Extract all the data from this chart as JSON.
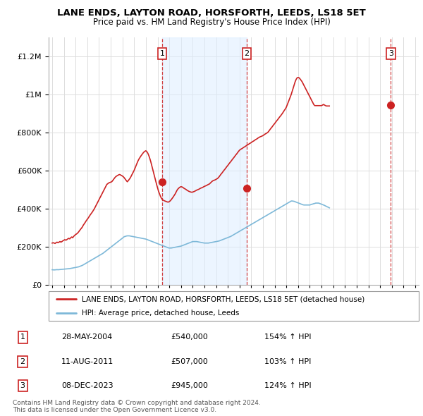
{
  "title1": "LANE ENDS, LAYTON ROAD, HORSFORTH, LEEDS, LS18 5ET",
  "title2": "Price paid vs. HM Land Registry's House Price Index (HPI)",
  "legend_line1": "LANE ENDS, LAYTON ROAD, HORSFORTH, LEEDS, LS18 5ET (detached house)",
  "legend_line2": "HPI: Average price, detached house, Leeds",
  "footer1": "Contains HM Land Registry data © Crown copyright and database right 2024.",
  "footer2": "This data is licensed under the Open Government Licence v3.0.",
  "transactions": [
    {
      "num": 1,
      "date": "28-MAY-2004",
      "price": 540000,
      "hpi_pct": "154% ↑ HPI",
      "year": 2004.4
    },
    {
      "num": 2,
      "date": "11-AUG-2011",
      "price": 507000,
      "hpi_pct": "103% ↑ HPI",
      "year": 2011.62
    },
    {
      "num": 3,
      "date": "08-DEC-2023",
      "price": 945000,
      "hpi_pct": "124% ↑ HPI",
      "year": 2023.92
    }
  ],
  "hpi_color": "#7db8d8",
  "price_color": "#cc2222",
  "vline_color": "#cc2222",
  "shade_color": "#ddeeff",
  "ylim": [
    0,
    1300000
  ],
  "yticks": [
    0,
    200000,
    400000,
    600000,
    800000,
    1000000,
    1200000
  ],
  "xlim_start": 1994.7,
  "xlim_end": 2026.3,
  "hpi_data_monthly": {
    "start_year": 1995,
    "start_month": 1,
    "values": [
      80000,
      79500,
      79000,
      79500,
      80000,
      80500,
      80000,
      80500,
      81000,
      81500,
      82000,
      82500,
      83000,
      83500,
      84000,
      84500,
      85000,
      85500,
      86000,
      87000,
      88000,
      89000,
      90000,
      91000,
      92000,
      93000,
      94000,
      95000,
      97000,
      99000,
      101000,
      103000,
      106000,
      109000,
      112000,
      115000,
      118000,
      121000,
      124000,
      127000,
      130000,
      133000,
      136000,
      139000,
      142000,
      145000,
      148000,
      151000,
      154000,
      157000,
      160000,
      163000,
      166000,
      170000,
      174000,
      178000,
      182000,
      186000,
      190000,
      194000,
      198000,
      202000,
      206000,
      210000,
      214000,
      218000,
      222000,
      226000,
      230000,
      234000,
      238000,
      242000,
      246000,
      250000,
      254000,
      255000,
      257000,
      258000,
      258000,
      258000,
      257000,
      256000,
      255000,
      254000,
      253000,
      252000,
      251000,
      250000,
      249000,
      248000,
      247000,
      246000,
      245000,
      244000,
      243000,
      242000,
      241000,
      239000,
      237000,
      235000,
      233000,
      231000,
      229000,
      227000,
      225000,
      223000,
      221000,
      219000,
      217000,
      215000,
      213000,
      211000,
      209000,
      207000,
      205000,
      203000,
      201000,
      199000,
      197000,
      195000,
      194000,
      194000,
      194000,
      195000,
      196000,
      197000,
      198000,
      199000,
      200000,
      201000,
      202000,
      203000,
      204000,
      206000,
      208000,
      210000,
      212000,
      214000,
      216000,
      218000,
      220000,
      222000,
      224000,
      226000,
      228000,
      228000,
      228000,
      228000,
      228000,
      227000,
      226000,
      225000,
      224000,
      223000,
      222000,
      221000,
      220000,
      220000,
      220000,
      220000,
      220000,
      221000,
      222000,
      223000,
      224000,
      225000,
      226000,
      227000,
      228000,
      229000,
      230000,
      231000,
      233000,
      235000,
      237000,
      239000,
      241000,
      243000,
      245000,
      247000,
      249000,
      251000,
      253000,
      255000,
      258000,
      261000,
      264000,
      267000,
      270000,
      273000,
      276000,
      279000,
      282000,
      285000,
      288000,
      291000,
      294000,
      297000,
      300000,
      303000,
      306000,
      309000,
      312000,
      315000,
      318000,
      321000,
      324000,
      327000,
      330000,
      333000,
      336000,
      339000,
      342000,
      345000,
      348000,
      351000,
      354000,
      357000,
      360000,
      363000,
      366000,
      369000,
      372000,
      375000,
      378000,
      381000,
      384000,
      387000,
      390000,
      393000,
      396000,
      399000,
      402000,
      405000,
      408000,
      411000,
      414000,
      417000,
      420000,
      423000,
      426000,
      429000,
      432000,
      435000,
      438000,
      441000,
      441000,
      440000,
      439000,
      437000,
      435000,
      433000,
      431000,
      429000,
      427000,
      425000,
      423000,
      421000,
      420000,
      420000,
      420000,
      420000,
      420000,
      420000,
      420000,
      422000,
      424000,
      425000,
      427000,
      428000,
      430000,
      430000,
      430000,
      430000,
      428000,
      426000,
      424000,
      422000,
      420000,
      418000,
      415000,
      413000,
      410000,
      408000,
      405000
    ]
  },
  "price_data_monthly": {
    "start_year": 1995,
    "start_month": 1,
    "values": [
      220000,
      222000,
      220000,
      218000,
      222000,
      225000,
      222000,
      225000,
      228000,
      225000,
      228000,
      232000,
      235000,
      238000,
      235000,
      238000,
      242000,
      245000,
      242000,
      248000,
      252000,
      248000,
      255000,
      260000,
      265000,
      268000,
      272000,
      278000,
      285000,
      292000,
      298000,
      305000,
      315000,
      322000,
      330000,
      338000,
      345000,
      352000,
      360000,
      368000,
      375000,
      382000,
      390000,
      398000,
      408000,
      418000,
      428000,
      438000,
      448000,
      458000,
      468000,
      478000,
      488000,
      498000,
      508000,
      518000,
      528000,
      532000,
      536000,
      538000,
      540000,
      542000,
      548000,
      555000,
      562000,
      568000,
      572000,
      575000,
      578000,
      580000,
      578000,
      575000,
      572000,
      568000,
      562000,
      555000,
      548000,
      542000,
      548000,
      555000,
      562000,
      572000,
      582000,
      592000,
      602000,
      615000,
      628000,
      640000,
      652000,
      662000,
      670000,
      678000,
      685000,
      692000,
      698000,
      702000,
      705000,
      700000,
      692000,
      680000,
      665000,
      648000,
      628000,
      608000,
      588000,
      568000,
      548000,
      528000,
      510000,
      492000,
      478000,
      465000,
      455000,
      448000,
      445000,
      442000,
      440000,
      438000,
      436000,
      435000,
      438000,
      442000,
      448000,
      455000,
      462000,
      470000,
      478000,
      488000,
      498000,
      505000,
      510000,
      514000,
      516000,
      515000,
      512000,
      508000,
      505000,
      502000,
      498000,
      495000,
      492000,
      490000,
      488000,
      487000,
      488000,
      490000,
      492000,
      495000,
      498000,
      500000,
      502000,
      505000,
      508000,
      510000,
      512000,
      515000,
      518000,
      520000,
      522000,
      525000,
      528000,
      530000,
      535000,
      540000,
      545000,
      548000,
      550000,
      552000,
      555000,
      558000,
      562000,
      568000,
      575000,
      582000,
      588000,
      595000,
      602000,
      608000,
      615000,
      622000,
      628000,
      635000,
      642000,
      648000,
      655000,
      662000,
      668000,
      675000,
      682000,
      688000,
      695000,
      702000,
      708000,
      712000,
      715000,
      718000,
      722000,
      725000,
      728000,
      732000,
      735000,
      738000,
      742000,
      745000,
      748000,
      752000,
      755000,
      758000,
      762000,
      765000,
      768000,
      772000,
      775000,
      778000,
      780000,
      782000,
      785000,
      788000,
      792000,
      795000,
      798000,
      802000,
      808000,
      815000,
      822000,
      828000,
      835000,
      842000,
      848000,
      855000,
      862000,
      868000,
      875000,
      882000,
      888000,
      895000,
      902000,
      910000,
      918000,
      925000,
      935000,
      948000,
      962000,
      975000,
      988000,
      1002000,
      1018000,
      1035000,
      1052000,
      1068000,
      1080000,
      1088000,
      1090000,
      1088000,
      1082000,
      1075000,
      1068000,
      1058000,
      1048000,
      1038000,
      1028000,
      1018000,
      1008000,
      998000,
      988000,
      978000,
      968000,
      958000,
      948000,
      942000,
      942000,
      942000,
      942000,
      942000,
      942000,
      942000,
      942000,
      945000,
      948000,
      945000,
      942000,
      940000,
      940000,
      940000,
      940000
    ]
  }
}
